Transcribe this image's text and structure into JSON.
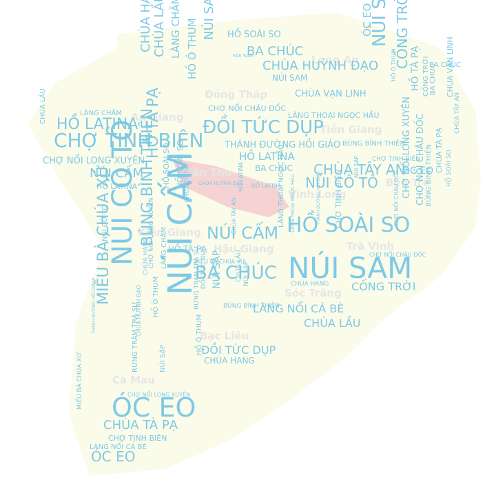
{
  "palette": {
    "word": "#7ec9e6",
    "province": "#e9e9e9",
    "map_fill": "#fbfbe8",
    "map_highlight": "#f2c4c4"
  },
  "provinces": [
    {
      "text": "Long An"
    },
    {
      "text": "Đồng Tháp"
    },
    {
      "text": "An Giang"
    },
    {
      "text": "Tiền Giang"
    },
    {
      "text": "Cần Thơ"
    },
    {
      "text": "Bến Tre"
    },
    {
      "text": "Vĩnh Long"
    },
    {
      "text": "Kiên Giang"
    },
    {
      "text": "Hậu Giang"
    },
    {
      "text": "Trà Vinh"
    },
    {
      "text": "Sóc Trăng"
    },
    {
      "text": "Bạc Liêu"
    },
    {
      "text": "Cà Mau"
    }
  ],
  "words": [
    {
      "text": "NÚI CẤM"
    },
    {
      "text": "NÚI SAM"
    },
    {
      "text": "NÚI CÔ TÔ"
    },
    {
      "text": "ÓC EO"
    },
    {
      "text": "CHỢ TỊNH BIÊN"
    },
    {
      "text": "HỒ SOÀI SO"
    },
    {
      "text": "ĐỒI TỨC DỤP"
    },
    {
      "text": "BÀ CHÚC"
    },
    {
      "text": "NÚI CẤM"
    },
    {
      "text": "BÙNG BÌNH THIÊN"
    },
    {
      "text": "MIẾU BÀ CHÚA XỨ"
    },
    {
      "text": "HỒ LATINA"
    },
    {
      "text": "NÚI SẬP"
    },
    {
      "text": "CỐNG TRỜI"
    },
    {
      "text": "CHÙA TÂY AN"
    },
    {
      "text": "NÚI CÔ TÔ"
    },
    {
      "text": "CHÙA HUỲNH ĐẠO"
    },
    {
      "text": "BA CHÚC"
    },
    {
      "text": "HỒ TÀ PẠ"
    },
    {
      "text": "CHÙA TÀ PẠ"
    },
    {
      "text": "CHÙA HẠNG"
    },
    {
      "text": "CHÙA LẦU"
    },
    {
      "text": "NÚI SAM"
    },
    {
      "text": "LÀNG CHĂM"
    },
    {
      "text": "HỒ Ô THUM"
    },
    {
      "text": "ÓC EO"
    },
    {
      "text": "ÓC EO"
    },
    {
      "text": "CHỢ NỔI LONG XUYÊN"
    },
    {
      "text": "LÀNG NỔI CÁ BÈ"
    },
    {
      "text": "CHÙA LẦU"
    },
    {
      "text": "CỐNG TRỜI"
    },
    {
      "text": "HỒ LATINA"
    },
    {
      "text": "NÚI CẤM"
    },
    {
      "text": "THÁNH ĐƯỜNG HỒI GIÁO"
    },
    {
      "text": "HỒ SOÀI SO"
    },
    {
      "text": "BA CHÚC"
    },
    {
      "text": "CHÙA VẠN LINH"
    },
    {
      "text": "NÚI SAM"
    },
    {
      "text": "CHỢ NỔI CHÂU ĐỐC"
    },
    {
      "text": "LÀNG THOẠI NGỌC HẦU"
    },
    {
      "text": "BÙNG BÌNH THIÊN"
    },
    {
      "text": "HỒ LATINA"
    },
    {
      "text": "BA CHÚC"
    },
    {
      "text": "ĐỒI TỨC DỤP"
    },
    {
      "text": "CHÙA HANG"
    },
    {
      "text": "CHÙA TÀ PẠ"
    },
    {
      "text": "CHỢ TỊNH BIÊN"
    },
    {
      "text": "LÀNG NỔI CÁ BÈ"
    },
    {
      "text": "NÚI SẬP"
    },
    {
      "text": "HỒ Ô THUM"
    },
    {
      "text": "HỒ LATINA"
    },
    {
      "text": "HỒ TÀ PẠ"
    },
    {
      "text": "NÚI SAM"
    },
    {
      "text": "CHÙA VẠN LINH"
    },
    {
      "text": "CHÙA LẦU"
    },
    {
      "text": "LÀNG CHĂM"
    },
    {
      "text": "CHỢ NỔI LONG XUYÊN"
    },
    {
      "text": "CHỢ NỔI CHÂU ĐỐC"
    },
    {
      "text": "HỒ SOÀI SO"
    },
    {
      "text": "ÓC EO"
    },
    {
      "text": "HỒ TÀ PẠ"
    },
    {
      "text": "CHÙA HANG"
    },
    {
      "text": "CHÙA TÂY AN"
    },
    {
      "text": "CHỢ TỊNH BIÊN"
    },
    {
      "text": "HỒ SOÀI SO"
    },
    {
      "text": "CHÙA LẦU"
    },
    {
      "text": "NÚI SẬP"
    },
    {
      "text": "HỒ SOÀI SO"
    },
    {
      "text": "CỐNG TRỜI"
    },
    {
      "text": "CHÙA TÀ PẠ"
    },
    {
      "text": "BÙNG BÌNH THIÊN"
    },
    {
      "text": "BÀ CHÚC"
    },
    {
      "text": "CHỢ NỔI CHÂU ĐỐC"
    },
    {
      "text": "CHÙA TÂY AN"
    },
    {
      "text": "CHỢ NỔI LONG XUYÊN"
    },
    {
      "text": "HỒ Ô THUM"
    },
    {
      "text": "ĐỒI TỨC DỤP"
    },
    {
      "text": "LÀNG THOẠI NGỌC HẦU"
    },
    {
      "text": "CHÙA HUỲNH ĐẠO"
    },
    {
      "text": "RỪNG TRÀM TRÀ SƯ"
    },
    {
      "text": "THÁNH ĐƯỜNG HỒI GIÁO"
    },
    {
      "text": "CHÙA HANG"
    },
    {
      "text": "MIẾU BÀ CHÚA XỨ"
    },
    {
      "text": "CHỢ NỔI LONG XUYÊN"
    },
    {
      "text": "RỪNG TRÀM TRÀ SƯ"
    },
    {
      "text": "NÚI CÔ TÔ"
    },
    {
      "text": "HỒ Ô THUM"
    },
    {
      "text": "LÀNG CHĂM"
    },
    {
      "text": "NÚI SẬP"
    },
    {
      "text": "MIẾU BÀ CHÚA XỨ"
    },
    {
      "text": "HỒ LATINA"
    },
    {
      "text": "CHÙA HUỲNH ĐẠO"
    },
    {
      "text": "BÙNG BÌNH THIÊN"
    },
    {
      "text": "CHỢ NỔI CHÂU ĐỐC"
    },
    {
      "text": "LÀNG THOẠI NGỌC HẦU"
    },
    {
      "text": "NÚI SẬP"
    },
    {
      "text": "CHỢ TỊNH BIÊN"
    },
    {
      "text": "THÁNH ĐƯỜNG HỒI GIÁO"
    }
  ]
}
